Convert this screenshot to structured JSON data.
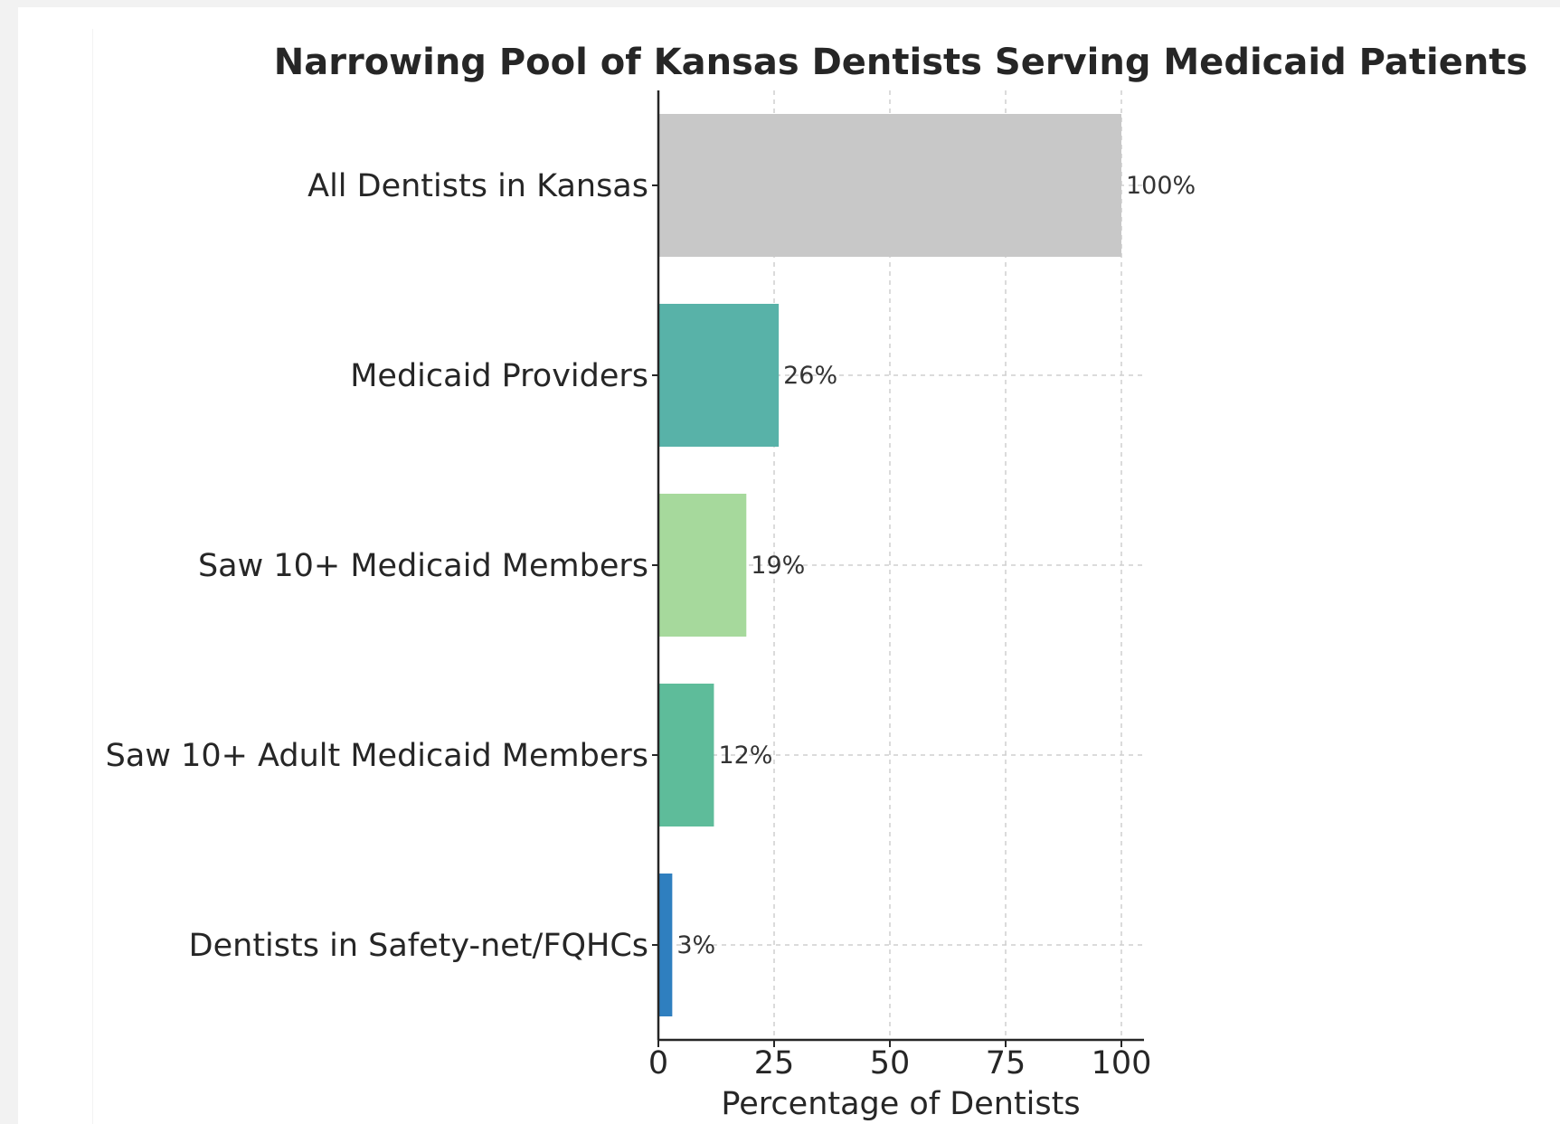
{
  "chart_data": {
    "type": "bar",
    "orientation": "horizontal",
    "title": "Narrowing Pool of Kansas Dentists Serving Medicaid Patients",
    "xlabel": "Percentage of Dentists",
    "ylabel": "",
    "xlim": [
      0,
      100
    ],
    "xticks": [
      0,
      25,
      50,
      75,
      100
    ],
    "grid": true,
    "categories": [
      "All Dentists in Kansas",
      "Medicaid Providers",
      "Saw 10+ Medicaid Members",
      "Saw 10+ Adult Medicaid Members",
      "Dentists in Safety-net/FQHCs"
    ],
    "values": [
      100,
      26,
      19,
      12,
      3
    ],
    "value_labels": [
      "100%",
      "26%",
      "19%",
      "12%",
      "3%"
    ],
    "colors": [
      "#c8c8c8",
      "#58b2a8",
      "#a6d99c",
      "#5ebc9a",
      "#2f7fbf"
    ]
  }
}
